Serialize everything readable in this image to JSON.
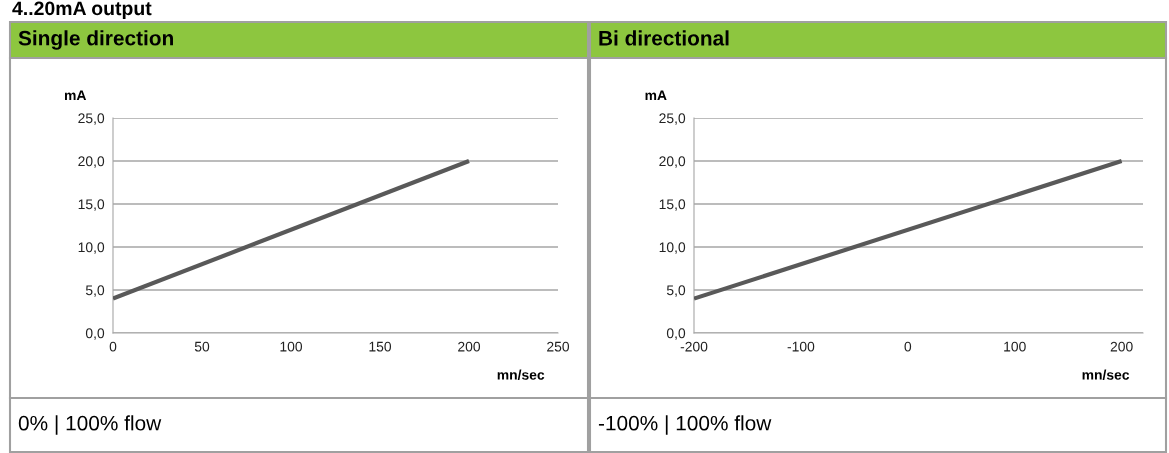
{
  "chart_data": [
    {
      "type": "line",
      "title": "Single direction",
      "xlabel": "mn/sec",
      "ylabel": "mA",
      "annotations": [
        "4..20mA output",
        "0% | 100% flow"
      ],
      "x": [
        0,
        200
      ],
      "series": [
        {
          "color": "#595959",
          "values": [
            4,
            20
          ]
        }
      ],
      "xlim": [
        0,
        250
      ],
      "xticks": [
        0,
        50,
        100,
        150,
        200,
        250
      ],
      "ylim": [
        0,
        25
      ],
      "yticks": [
        {
          "value": 0,
          "label": "0,0"
        },
        {
          "value": 5,
          "label": "5,0"
        },
        {
          "value": 10,
          "label": "10,0"
        },
        {
          "value": 15,
          "label": "15,0"
        },
        {
          "value": 20,
          "label": "20,0"
        },
        {
          "value": 25,
          "label": "25,0"
        }
      ],
      "grid": "y",
      "marker": "none",
      "line_style": "solid"
    },
    {
      "type": "line",
      "title": "Bi directional",
      "xlabel": "mn/sec",
      "ylabel": "mA",
      "annotations": [
        "-100% | 100% flow"
      ],
      "x": [
        -200,
        200
      ],
      "series": [
        {
          "color": "#595959",
          "values": [
            4,
            20
          ]
        }
      ],
      "xlim": [
        -200,
        220
      ],
      "xticks": [
        -200,
        -100,
        0,
        100,
        200
      ],
      "ylim": [
        0,
        25
      ],
      "yticks": [
        {
          "value": 0,
          "label": "0,0"
        },
        {
          "value": 5,
          "label": "5,0"
        },
        {
          "value": 10,
          "label": "10,0"
        },
        {
          "value": 15,
          "label": "15,0"
        },
        {
          "value": 20,
          "label": "20,0"
        },
        {
          "value": 25,
          "label": "25,0"
        }
      ],
      "grid": "y",
      "marker": "none",
      "line_style": "solid"
    }
  ]
}
